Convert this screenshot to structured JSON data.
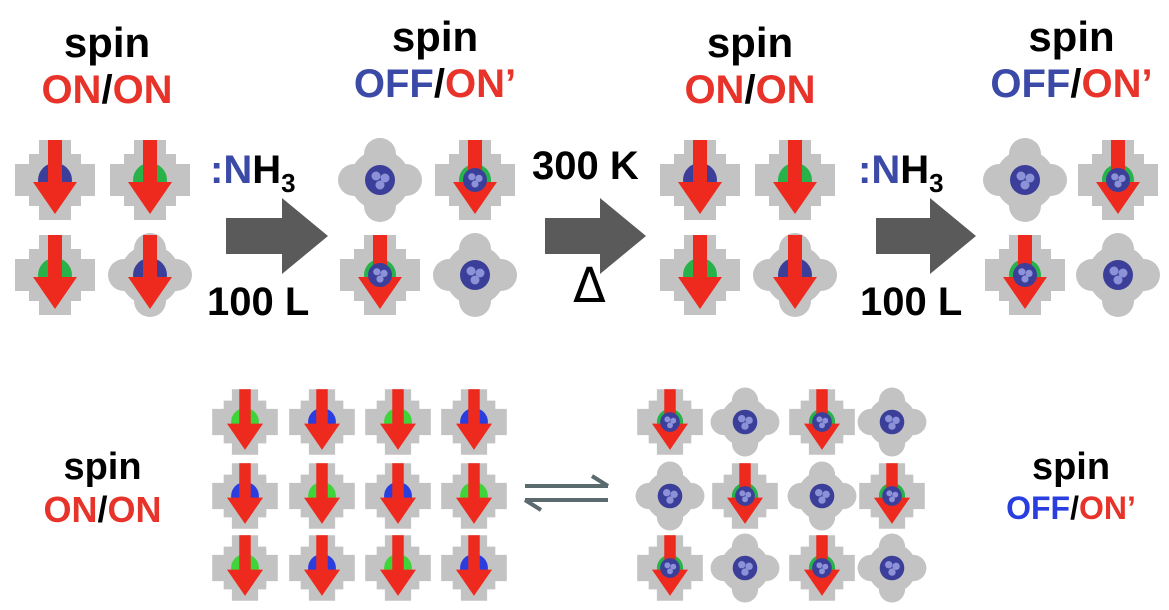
{
  "colors": {
    "on": "#e8332a",
    "off": "#3b4aa7",
    "molecule": "#c3c3c3",
    "arrow_red": "#ee2a1f",
    "green": "#27b24a",
    "green_bright": "#3fd43a",
    "blue_center": "#3b3f9a",
    "blue_bright": "#2a3ee0",
    "reaction_arrow": "#5a5a5a"
  },
  "top": {
    "panels": [
      {
        "spin": "spin",
        "state_a": "ON",
        "slash": "/",
        "state_b": "ON"
      },
      {
        "spin": "spin",
        "state_a": "OFF",
        "slash": "/",
        "state_b": "ON’"
      },
      {
        "spin": "spin",
        "state_a": "ON",
        "slash": "/",
        "state_b": "ON"
      },
      {
        "spin": "spin",
        "state_a": "OFF",
        "slash": "/",
        "state_b": "ON’"
      }
    ],
    "steps": [
      {
        "reagent_dots": ":",
        "reagent_n": "N",
        "reagent_h": "H",
        "reagent_sub": "3",
        "dose": "100 L"
      },
      {
        "temperature": "300 K",
        "heat_symbol": "Δ"
      },
      {
        "reagent_dots": ":",
        "reagent_n": "N",
        "reagent_h": "H",
        "reagent_sub": "3",
        "dose": "100 L"
      }
    ]
  },
  "bottom": {
    "left": {
      "spin": "spin",
      "state_a": "ON",
      "slash": "/",
      "state_b": "ON"
    },
    "right": {
      "spin": "spin",
      "state_a": "OFF",
      "slash": "/",
      "state_b": "ON’"
    }
  },
  "icons": {
    "molecule": "molecule-icon",
    "spin_arrow": "spin-arrow-icon",
    "reaction_arrow": "reaction-arrow-icon",
    "equilibrium": "equilibrium-arrows-icon"
  }
}
